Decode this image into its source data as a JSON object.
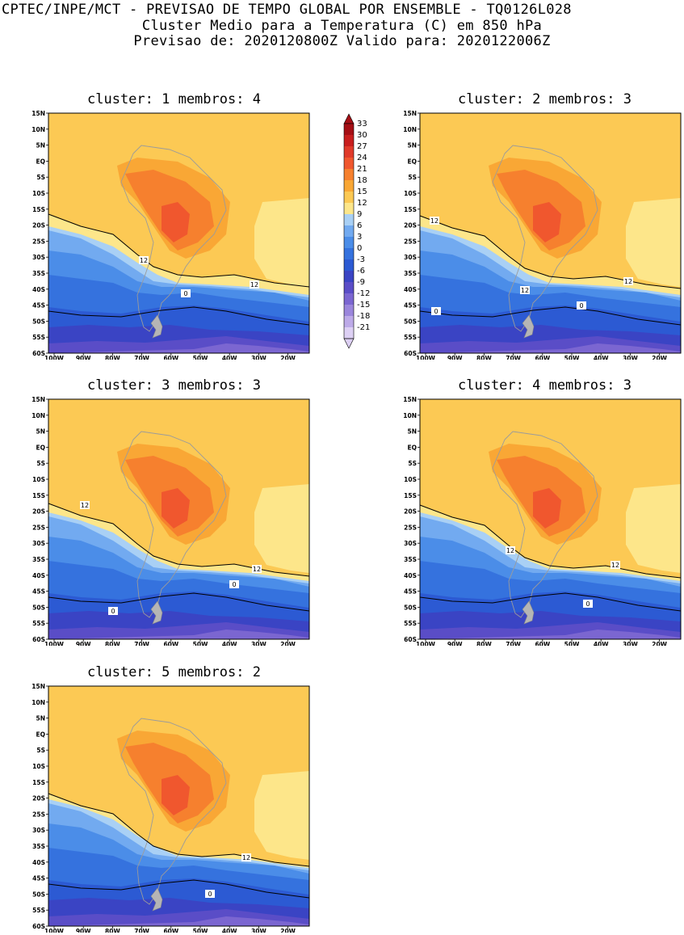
{
  "header": {
    "line1": "CPTEC/INPE/MCT - PREVISAO DE TEMPO GLOBAL POR ENSEMBLE - TQ0126L028",
    "line2": "Cluster Medio para a Temperatura (C) em 850 hPa",
    "line3": "Previsao de: 2020120800Z   Valido para: 2020122006Z"
  },
  "lat_labels": [
    "15N",
    "10N",
    "5N",
    "EQ",
    "5S",
    "10S",
    "15S",
    "20S",
    "25S",
    "30S",
    "35S",
    "40S",
    "45S",
    "50S",
    "55S",
    "60S"
  ],
  "lon_labels": [
    "100W",
    "90W",
    "80W",
    "70W",
    "60W",
    "50W",
    "40W",
    "30W",
    "20W"
  ],
  "colorbar": {
    "levels": [
      "33",
      "30",
      "27",
      "24",
      "21",
      "18",
      "15",
      "12",
      "9",
      "6",
      "3",
      "0",
      "-3",
      "-6",
      "-9",
      "-12",
      "-15",
      "-18",
      "-21"
    ],
    "colors": [
      "#a50f15",
      "#c81e1e",
      "#e03a2a",
      "#f0572e",
      "#f6802e",
      "#f9a735",
      "#fcc954",
      "#fde68a",
      "#a9d0f5",
      "#72aaf0",
      "#4b8de8",
      "#3572de",
      "#2c5ad3",
      "#3a44c4",
      "#5a4dc7",
      "#7b66d1",
      "#9b86dc",
      "#bdaae8",
      "#ddd0f4"
    ]
  },
  "panels": [
    {
      "title": "cluster: 1   membros: 4",
      "contour_labels": [
        "12",
        "12",
        "0"
      ]
    },
    {
      "title": "cluster: 2   membros: 3",
      "contour_labels": [
        "12",
        "12",
        "12",
        "0",
        "0"
      ]
    },
    {
      "title": "cluster: 3   membros: 3",
      "contour_labels": [
        "12",
        "12",
        "0",
        "0"
      ]
    },
    {
      "title": "cluster: 4   membros: 3",
      "contour_labels": [
        "12",
        "12",
        "0"
      ]
    },
    {
      "title": "cluster: 5   membros: 2",
      "contour_labels": [
        "12",
        "0"
      ]
    }
  ]
}
